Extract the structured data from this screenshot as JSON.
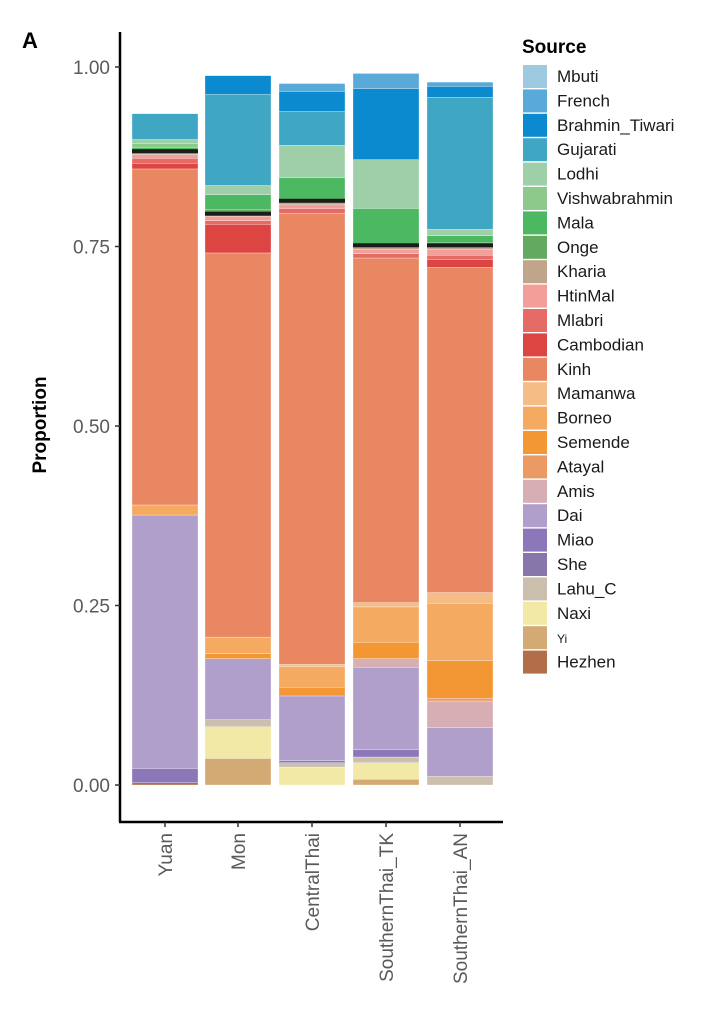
{
  "panel_label": "A",
  "chart_data": {
    "type": "bar",
    "stacked": true,
    "title": "",
    "xlabel": "",
    "ylabel": "Proportion",
    "ylim": [
      0,
      1
    ],
    "yticks": [
      0.0,
      0.25,
      0.5,
      0.75,
      1.0
    ],
    "ytick_labels": [
      "0.00",
      "0.25",
      "0.50",
      "0.75",
      "1.00"
    ],
    "grid": false,
    "legend": {
      "title": "Source",
      "position": "right"
    },
    "categories": [
      "Yuan",
      "Mon",
      "CentralThai",
      "SouthernThai_TK",
      "SouthernThai_AN"
    ],
    "series": [
      {
        "name": "Mbuti",
        "color": "#9ecae1",
        "values": [
          0.0,
          0.0,
          0.0,
          0.0,
          0.0
        ]
      },
      {
        "name": "French",
        "color": "#5aaad9",
        "values": [
          0.0,
          0.0,
          0.011,
          0.021,
          0.006
        ]
      },
      {
        "name": "Brahmin_Tiwari",
        "color": "#0b8ad0",
        "values": [
          0.0,
          0.026,
          0.028,
          0.099,
          0.015
        ]
      },
      {
        "name": "Gujarati",
        "color": "#3fa6c3",
        "values": [
          0.036,
          0.127,
          0.047,
          0.0,
          0.184
        ]
      },
      {
        "name": "Lodhi",
        "color": "#9fcfa8",
        "values": [
          0.006,
          0.013,
          0.045,
          0.068,
          0.009
        ]
      },
      {
        "name": "Vishwabrahmin",
        "color": "#8cc98a",
        "values": [
          0.005,
          0.0,
          0.0,
          0.0,
          0.0
        ]
      },
      {
        "name": "Mala",
        "color": "#4db862",
        "values": [
          0.006,
          0.021,
          0.033,
          0.052,
          0.01
        ]
      },
      {
        "name": "Onge",
        "color": "#63a95f",
        "values": [
          0.0,
          0.006,
          0.0,
          0.0,
          0.004
        ]
      },
      {
        "name": "Kharia",
        "color": "#bfa58c",
        "values": [
          0.004,
          0.003,
          0.005,
          0.005,
          0.005
        ]
      },
      {
        "name": "HtinMal",
        "color": "#f29f9a",
        "values": [
          0.005,
          0.006,
          0.005,
          0.006,
          0.008
        ]
      },
      {
        "name": "Mlabri",
        "color": "#e66a65",
        "values": [
          0.007,
          0.005,
          0.007,
          0.006,
          0.006
        ]
      },
      {
        "name": "Cambodian",
        "color": "#dd4542",
        "values": [
          0.008,
          0.04,
          0.0,
          0.0,
          0.011
        ]
      },
      {
        "name": "Kinh",
        "color": "#e98763",
        "values": [
          0.468,
          0.535,
          0.628,
          0.48,
          0.453
        ]
      },
      {
        "name": "Mamanwa",
        "color": "#f5bd85",
        "values": [
          0.0,
          0.0,
          0.003,
          0.006,
          0.015
        ]
      },
      {
        "name": "Borneo",
        "color": "#f5aa62",
        "values": [
          0.014,
          0.023,
          0.029,
          0.049,
          0.08
        ]
      },
      {
        "name": "Semende",
        "color": "#f29733",
        "values": [
          0.0,
          0.007,
          0.012,
          0.023,
          0.052
        ]
      },
      {
        "name": "Atayal",
        "color": "#ec9a64",
        "values": [
          0.0,
          0.0,
          0.0,
          0.0,
          0.004
        ]
      },
      {
        "name": "Amis",
        "color": "#d6aeb4",
        "values": [
          0.0,
          0.0,
          0.0,
          0.012,
          0.037
        ]
      },
      {
        "name": "Dai",
        "color": "#b09fcb",
        "values": [
          0.353,
          0.085,
          0.09,
          0.115,
          0.068
        ]
      },
      {
        "name": "Miao",
        "color": "#8c78b8",
        "values": [
          0.02,
          0.0,
          0.003,
          0.01,
          0.0
        ]
      },
      {
        "name": "She",
        "color": "#8676aa",
        "values": [
          0.0,
          0.0,
          0.0,
          0.0,
          0.0
        ]
      },
      {
        "name": "Lahu_C",
        "color": "#cbbfad",
        "values": [
          0.0,
          0.01,
          0.006,
          0.008,
          0.012
        ]
      },
      {
        "name": "Naxi",
        "color": "#f3e9a6",
        "values": [
          0.0,
          0.044,
          0.025,
          0.023,
          0.0
        ]
      },
      {
        "name": "Yi",
        "color": "#d4aa74",
        "values": [
          0.0,
          0.037,
          0.0,
          0.008,
          0.0
        ]
      },
      {
        "name": "Hezhen",
        "color": "#b26e48",
        "values": [
          0.003,
          0.0,
          0.0,
          0.0,
          0.0
        ]
      }
    ],
    "dark_band_color": "#1c1c1c"
  }
}
